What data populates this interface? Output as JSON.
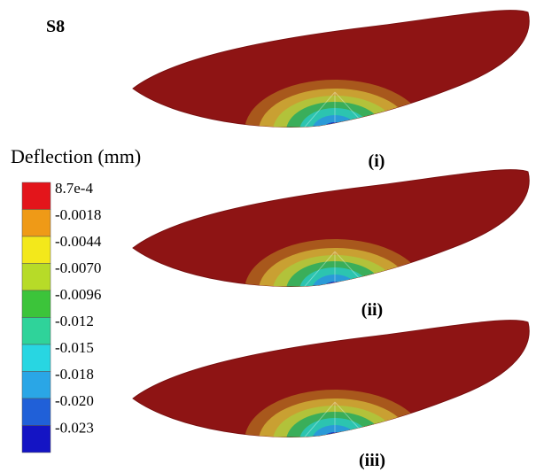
{
  "figure": {
    "label": "S8",
    "legend": {
      "title": "Deflection (mm)",
      "entries": [
        {
          "label": "8.7e-4",
          "color": "#e3151b"
        },
        {
          "label": "-0.0018",
          "color": "#ef9a17"
        },
        {
          "label": "-0.0044",
          "color": "#f3e81b"
        },
        {
          "label": "-0.0070",
          "color": "#b7db28"
        },
        {
          "label": "-0.0096",
          "color": "#3cc43a"
        },
        {
          "label": "-0.012",
          "color": "#2fd39a"
        },
        {
          "label": "-0.015",
          "color": "#28d6e2"
        },
        {
          "label": "-0.018",
          "color": "#2aa6e6"
        },
        {
          "label": "-0.020",
          "color": "#2060d8"
        },
        {
          "label": "-0.023",
          "color": "#1414c4"
        }
      ]
    },
    "panels": [
      {
        "caption": "(i)"
      },
      {
        "caption": "(ii)"
      },
      {
        "caption": "(iii)"
      }
    ]
  }
}
